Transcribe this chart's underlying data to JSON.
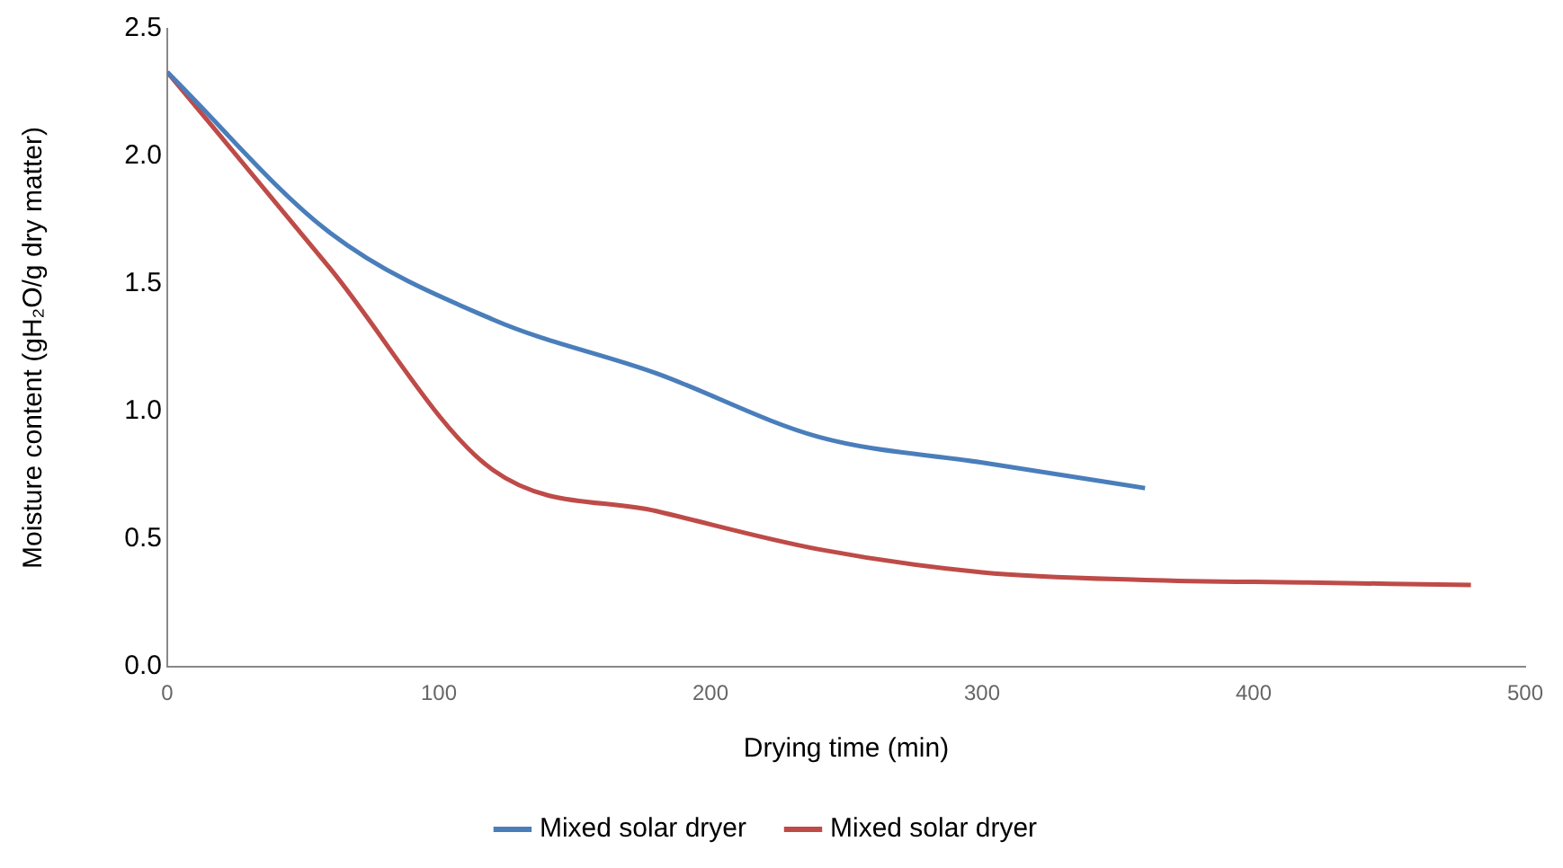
{
  "chart_data": {
    "type": "line",
    "xlabel": "Drying time (min)",
    "ylabel": "Moisture content (gH₂O/g dry matter)",
    "xlim": [
      0,
      500
    ],
    "xticks": [
      0,
      100,
      200,
      300,
      400,
      500
    ],
    "ylim": [
      0,
      2.5
    ],
    "yticks": [
      {
        "value": 0,
        "label": "0.0"
      },
      {
        "value": 0.5,
        "label": "0.5"
      },
      {
        "value": 1,
        "label": "1.0"
      },
      {
        "value": 1.5,
        "label": "1.5"
      },
      {
        "value": 2,
        "label": "2.0"
      },
      {
        "value": 2.5,
        "label": "2.5"
      }
    ],
    "grid": false,
    "legend": "bottom",
    "marker": "none",
    "line_style": "solid",
    "series": [
      {
        "name": "Mixed solar dryer",
        "color": "#4a7ebb",
        "x": [
          0,
          60,
          120,
          180,
          240,
          300,
          360
        ],
        "values": [
          2.33,
          1.7,
          1.36,
          1.15,
          0.9,
          0.8,
          0.7
        ]
      },
      {
        "name": "Mixed solar dryer",
        "color": "#be4b48",
        "x": [
          0,
          60,
          120,
          180,
          240,
          300,
          360,
          420,
          480
        ],
        "values": [
          2.33,
          1.56,
          0.77,
          0.61,
          0.46,
          0.37,
          0.34,
          0.33,
          0.32
        ]
      }
    ]
  }
}
